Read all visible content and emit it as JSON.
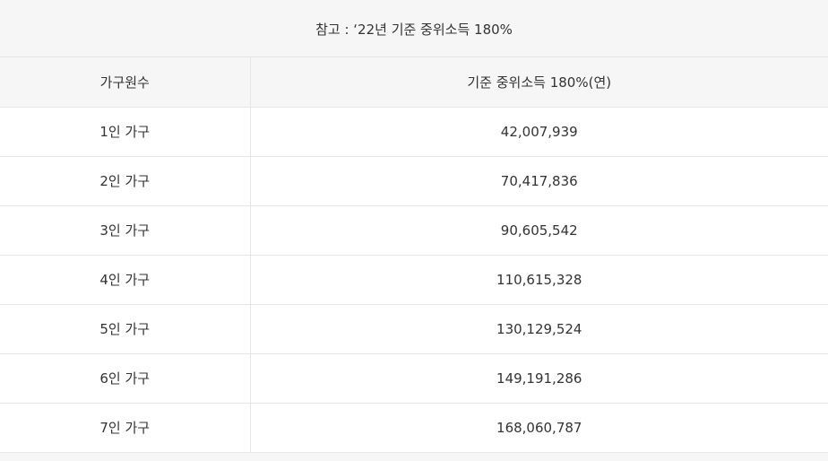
{
  "caption": "참고 : ‘22년 기준 중위소득 180%",
  "table": {
    "headers": [
      "가구원수",
      "기준 중위소득 180%(연)"
    ],
    "rows": [
      {
        "household": "1인 가구",
        "amount": "42,007,939"
      },
      {
        "household": "2인 가구",
        "amount": "70,417,836"
      },
      {
        "household": "3인 가구",
        "amount": "90,605,542"
      },
      {
        "household": "4인 가구",
        "amount": "110,615,328"
      },
      {
        "household": "5인 가구",
        "amount": "130,129,524"
      },
      {
        "household": "6인 가구",
        "amount": "149,191,286"
      },
      {
        "household": "7인 가구",
        "amount": "168,060,787"
      }
    ]
  }
}
